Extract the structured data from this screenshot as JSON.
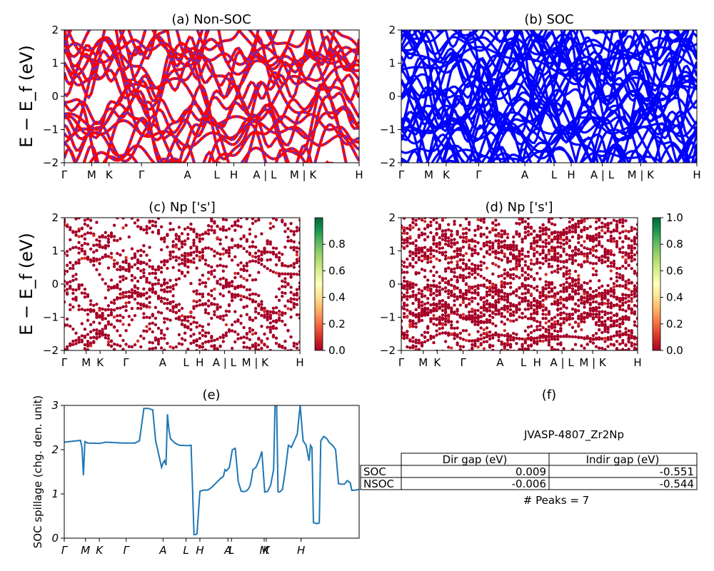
{
  "colors": {
    "nonsoc_red": "#ff0000",
    "nonsoc_blue_dash": "#3b3bff",
    "soc_blue": "#0000ff",
    "spillage_line": "#1f77b4",
    "cmap": [
      "#a50026",
      "#d73027",
      "#f46d43",
      "#fdae61",
      "#fee08b",
      "#ffffbf",
      "#d9ef8b",
      "#a6d96a",
      "#66bd63",
      "#1a9850",
      "#006837"
    ]
  },
  "band_ticks": [
    "Γ",
    "M",
    "K",
    "Γ",
    "A",
    "L",
    "H",
    "A | L",
    "M | K",
    "H"
  ],
  "band_ticks_c": [
    "Γ",
    "M",
    "K",
    "Γ",
    "A",
    "L",
    "H",
    "A | L",
    "M | K",
    "H"
  ],
  "spill_ticks": [
    "Γ",
    "M",
    "K",
    "Γ",
    "A",
    "L",
    "H",
    "A",
    "L",
    "M",
    "K",
    "H"
  ],
  "chart_data": [
    {
      "panel": "a",
      "type": "line",
      "title": "(a) Non-SOC",
      "ylabel": "E − E_f (eV)",
      "ylim": [
        -2,
        2
      ],
      "yticks": [
        -2,
        -1,
        0,
        1,
        2
      ],
      "note": "electronic band structure, red bands with blue dashes"
    },
    {
      "panel": "b",
      "type": "line",
      "title": "(b) SOC",
      "ylim": [
        -2,
        2
      ],
      "yticks": [
        -2,
        -1,
        0,
        1,
        2
      ]
    },
    {
      "panel": "c",
      "type": "scatter",
      "title": "(c)  Np ['s']",
      "ylabel": "E − E_f (eV)",
      "ylim": [
        -2,
        2
      ],
      "yticks": [
        -2,
        -1,
        0,
        1,
        2
      ],
      "colorbar_ticks": [
        "0.0",
        "0.2",
        "0.4",
        "0.6",
        "0.8"
      ]
    },
    {
      "panel": "d",
      "type": "scatter",
      "title": "(d) Np ['s']",
      "ylim": [
        -2,
        2
      ],
      "yticks": [
        -2,
        -1,
        0,
        1,
        2
      ],
      "colorbar_ticks": [
        "0.0",
        "0.2",
        "0.4",
        "0.6",
        "0.8",
        "1.0"
      ]
    },
    {
      "panel": "e",
      "type": "line",
      "title": "(e)",
      "ylabel": "SOC spillage (chg. den. unit)",
      "ylim": [
        0,
        3
      ],
      "yticks": [
        0,
        1,
        2,
        3
      ],
      "series": [
        {
          "x": [
            0,
            0.055,
            0.06,
            0.065,
            0.07,
            0.08,
            0.12,
            0.14,
            0.2,
            0.24,
            0.255,
            0.27,
            0.285,
            0.3,
            0.31,
            0.315,
            0.33,
            0.335,
            0.34,
            0.345,
            0.35,
            0.355,
            0.36,
            0.375,
            0.39,
            0.42,
            0.43,
            0.435,
            0.44,
            0.445,
            0.45,
            0.46,
            0.475,
            0.48,
            0.49,
            0.5,
            0.52,
            0.53,
            0.54,
            0.545,
            0.55,
            0.56,
            0.57,
            0.58,
            0.59,
            0.6,
            0.61,
            0.62,
            0.625,
            0.63,
            0.635,
            0.64,
            0.65,
            0.66,
            0.67,
            0.68,
            0.69,
            0.7,
            0.71,
            0.715,
            0.72,
            0.725,
            0.73,
            0.74,
            0.75,
            0.76,
            0.77,
            0.78,
            0.79,
            0.8,
            0.81,
            0.82,
            0.83,
            0.835,
            0.84,
            0.845,
            0.855,
            0.86,
            0.865,
            0.87,
            0.88,
            0.89,
            0.9,
            0.91,
            0.92,
            0.93,
            0.94,
            0.95,
            0.96,
            0.97,
            0.975,
            0.98,
            1.0
          ],
          "y": [
            2.17,
            2.21,
            2.05,
            1.42,
            2.18,
            2.15,
            2.14,
            2.17,
            2.15,
            2.15,
            2.2,
            2.93,
            2.93,
            2.9,
            2.2,
            2.05,
            1.6,
            1.7,
            1.75,
            1.65,
            2.8,
            2.45,
            2.25,
            2.15,
            2.1,
            2.09,
            2.1,
            1.1,
            0.08,
            0.08,
            0.1,
            1.06,
            1.09,
            1.08,
            1.1,
            1.15,
            1.28,
            1.35,
            1.4,
            1.55,
            1.52,
            1.6,
            2.0,
            2.03,
            1.28,
            1.06,
            1.05,
            1.08,
            1.12,
            1.18,
            1.35,
            1.55,
            1.6,
            1.75,
            1.96,
            1.04,
            1.06,
            1.2,
            1.55,
            3.05,
            3.05,
            1.05,
            1.04,
            1.1,
            1.55,
            2.1,
            2.05,
            2.2,
            2.35,
            3.0,
            2.2,
            2.1,
            1.75,
            2.1,
            2.05,
            0.35,
            0.33,
            0.33,
            0.35,
            2.2,
            2.3,
            2.25,
            2.15,
            2.1,
            2.0,
            1.23,
            1.22,
            1.22,
            1.3,
            1.25,
            1.08,
            1.08,
            1.1
          ]
        }
      ]
    },
    {
      "panel": "f",
      "type": "table",
      "title": "(f)",
      "subtitle": "JVASP-4807_Zr2Np",
      "columns": [
        "Dir gap (eV)",
        "Indir gap (eV)"
      ],
      "rows": [
        {
          "label": "SOC",
          "values": [
            "0.009",
            "-0.551"
          ]
        },
        {
          "label": "NSOC",
          "values": [
            "-0.006",
            "-0.544"
          ]
        }
      ],
      "footer": "# Peaks = 7"
    }
  ]
}
